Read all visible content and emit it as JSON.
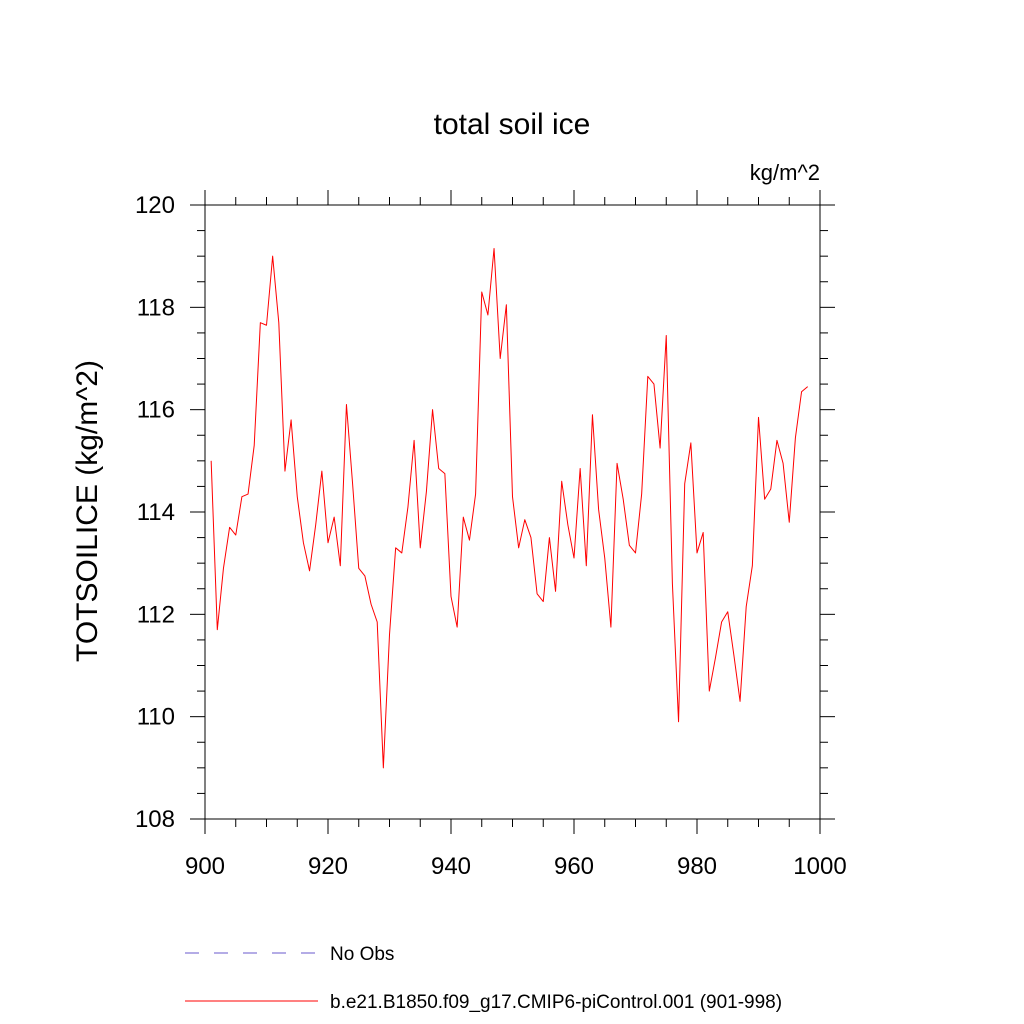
{
  "chart_data": {
    "type": "line",
    "title": "total soil ice",
    "units_label": "kg/m^2",
    "ylabel": "TOTSOILICE  (kg/m^2)",
    "xlabel": "",
    "xlim": [
      900,
      1000
    ],
    "ylim": [
      108,
      120
    ],
    "x_ticks": [
      900,
      920,
      940,
      960,
      980,
      1000
    ],
    "y_ticks": [
      108,
      110,
      112,
      114,
      116,
      118,
      120
    ],
    "grid": false,
    "legend_position": "bottom",
    "legend": [
      {
        "label": "No Obs",
        "color": "#6a5acd",
        "style": "dashed"
      },
      {
        "label": "b.e21.B1850.f09_g17.CMIP6-piControl.001 (901-998)",
        "color": "#ff0000",
        "style": "solid"
      }
    ],
    "series": [
      {
        "name": "b.e21.B1850.f09_g17.CMIP6-piControl.001 (901-998)",
        "color": "#ff0000",
        "x": [
          901,
          902,
          903,
          904,
          905,
          906,
          907,
          908,
          909,
          910,
          911,
          912,
          913,
          914,
          915,
          916,
          917,
          918,
          919,
          920,
          921,
          922,
          923,
          924,
          925,
          926,
          927,
          928,
          929,
          930,
          931,
          932,
          933,
          934,
          935,
          936,
          937,
          938,
          939,
          940,
          941,
          942,
          943,
          944,
          945,
          946,
          947,
          948,
          949,
          950,
          951,
          952,
          953,
          954,
          955,
          956,
          957,
          958,
          959,
          960,
          961,
          962,
          963,
          964,
          965,
          966,
          967,
          968,
          969,
          970,
          971,
          972,
          973,
          974,
          975,
          976,
          977,
          978,
          979,
          980,
          981,
          982,
          983,
          984,
          985,
          986,
          987,
          988,
          989,
          990,
          991,
          992,
          993,
          994,
          995,
          996,
          997,
          998
        ],
        "values": [
          115.0,
          111.7,
          112.9,
          113.7,
          113.55,
          114.3,
          114.35,
          115.3,
          117.7,
          117.65,
          119.0,
          117.7,
          114.8,
          115.8,
          114.3,
          113.4,
          112.85,
          113.75,
          114.8,
          113.4,
          113.9,
          112.95,
          116.1,
          114.55,
          112.9,
          112.75,
          112.2,
          111.85,
          109.0,
          111.6,
          113.3,
          113.2,
          114.1,
          115.4,
          113.3,
          114.4,
          116.0,
          114.85,
          114.75,
          112.35,
          111.75,
          113.9,
          113.45,
          114.35,
          118.3,
          117.85,
          119.15,
          117.0,
          118.05,
          114.3,
          113.3,
          113.85,
          113.5,
          112.4,
          112.25,
          113.5,
          112.45,
          114.6,
          113.75,
          113.1,
          114.85,
          112.95,
          115.9,
          114.05,
          113.1,
          111.75,
          114.95,
          114.25,
          113.35,
          113.2,
          114.35,
          116.65,
          116.5,
          115.25,
          117.45,
          112.6,
          109.9,
          114.55,
          115.35,
          113.2,
          113.6,
          110.5,
          111.15,
          111.85,
          112.05,
          111.2,
          110.3,
          112.15,
          112.95,
          115.85,
          114.25,
          114.45,
          115.4,
          114.95,
          113.8,
          115.45,
          116.35,
          116.45
        ]
      }
    ]
  }
}
